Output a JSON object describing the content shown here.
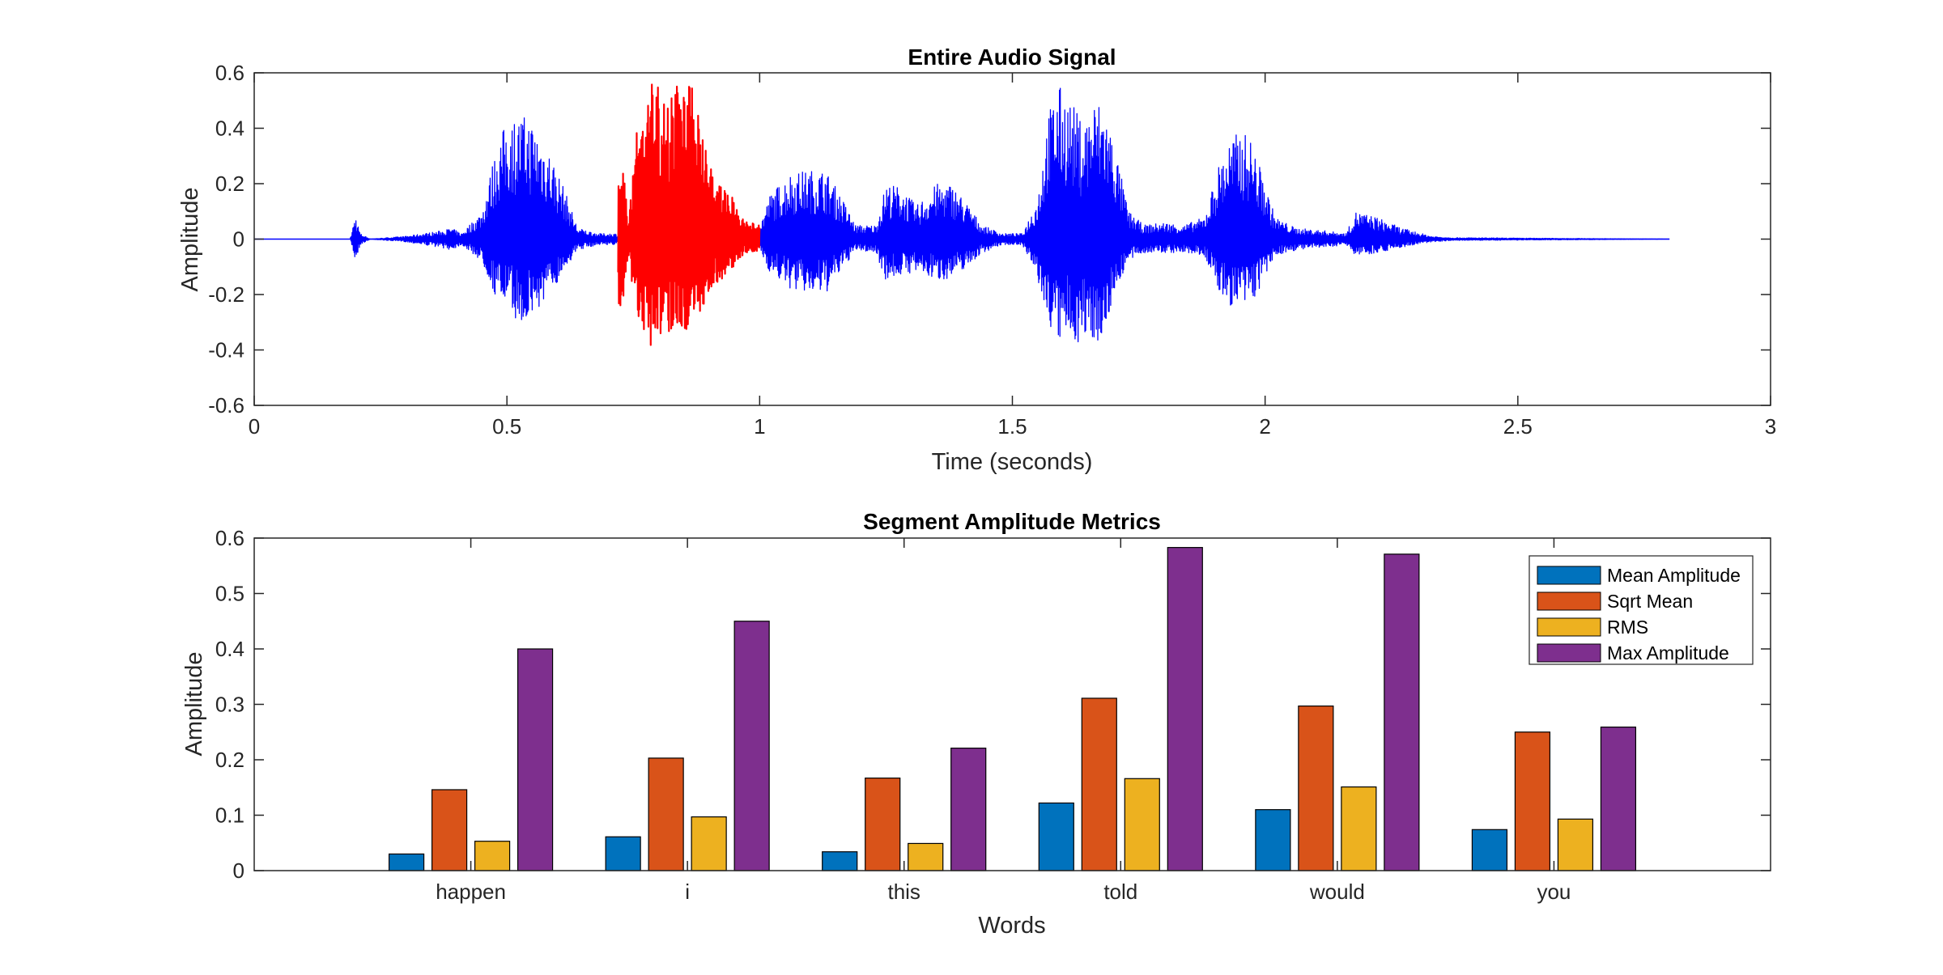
{
  "chart_data": [
    {
      "type": "line",
      "title": "Entire Audio Signal",
      "xlabel": "Time (seconds)",
      "ylabel": "Amplitude",
      "xlim": [
        0,
        3
      ],
      "ylim": [
        -0.6,
        0.6
      ],
      "xticks": [
        0,
        0.5,
        1,
        1.5,
        2,
        2.5,
        3
      ],
      "yticks": [
        -0.6,
        -0.4,
        -0.2,
        0,
        0.2,
        0.4,
        0.6
      ],
      "xticklabels": [
        "0",
        "0.5",
        "1",
        "1.5",
        "2",
        "2.5",
        "3"
      ],
      "yticklabels": [
        "-0.6",
        "-0.4",
        "-0.2",
        "0",
        "0.2",
        "0.4",
        "0.6"
      ],
      "grid": false,
      "series": [
        {
          "color": "#0000ff",
          "duration": 2.8,
          "envelope": [
            [
              0.19,
              0.0,
              0.0
            ],
            [
              0.2,
              0.09,
              -0.08
            ],
            [
              0.21,
              0.02,
              -0.02
            ],
            [
              0.23,
              0.0,
              0.0
            ],
            [
              0.3,
              0.01,
              -0.01
            ],
            [
              0.37,
              0.03,
              -0.03
            ],
            [
              0.39,
              0.04,
              -0.04
            ],
            [
              0.41,
              0.02,
              -0.02
            ],
            [
              0.45,
              0.1,
              -0.08
            ],
            [
              0.48,
              0.34,
              -0.22
            ],
            [
              0.5,
              0.43,
              -0.24
            ],
            [
              0.53,
              0.45,
              -0.32
            ],
            [
              0.55,
              0.43,
              -0.28
            ],
            [
              0.58,
              0.34,
              -0.22
            ],
            [
              0.61,
              0.2,
              -0.12
            ],
            [
              0.64,
              0.04,
              -0.04
            ],
            [
              0.68,
              0.02,
              -0.02
            ],
            [
              0.72,
              0.02,
              -0.02
            ],
            [
              1.0,
              0.05,
              -0.04
            ],
            [
              1.02,
              0.16,
              -0.12
            ],
            [
              1.06,
              0.24,
              -0.18
            ],
            [
              1.1,
              0.25,
              -0.2
            ],
            [
              1.13,
              0.25,
              -0.2
            ],
            [
              1.16,
              0.16,
              -0.12
            ],
            [
              1.19,
              0.05,
              -0.04
            ],
            [
              1.23,
              0.05,
              -0.05
            ],
            [
              1.25,
              0.2,
              -0.15
            ],
            [
              1.28,
              0.19,
              -0.13
            ],
            [
              1.31,
              0.12,
              -0.12
            ],
            [
              1.35,
              0.2,
              -0.15
            ],
            [
              1.38,
              0.2,
              -0.14
            ],
            [
              1.41,
              0.13,
              -0.1
            ],
            [
              1.44,
              0.05,
              -0.05
            ],
            [
              1.48,
              0.02,
              -0.02
            ],
            [
              1.52,
              0.02,
              -0.02
            ],
            [
              1.55,
              0.15,
              -0.15
            ],
            [
              1.57,
              0.45,
              -0.3
            ],
            [
              1.59,
              0.56,
              -0.38
            ],
            [
              1.61,
              0.52,
              -0.36
            ],
            [
              1.64,
              0.42,
              -0.38
            ],
            [
              1.66,
              0.5,
              -0.36
            ],
            [
              1.68,
              0.5,
              -0.38
            ],
            [
              1.7,
              0.36,
              -0.2
            ],
            [
              1.73,
              0.1,
              -0.08
            ],
            [
              1.76,
              0.05,
              -0.05
            ],
            [
              1.8,
              0.06,
              -0.05
            ],
            [
              1.84,
              0.05,
              -0.05
            ],
            [
              1.88,
              0.08,
              -0.06
            ],
            [
              1.91,
              0.28,
              -0.2
            ],
            [
              1.93,
              0.36,
              -0.24
            ],
            [
              1.95,
              0.39,
              -0.26
            ],
            [
              1.97,
              0.37,
              -0.24
            ],
            [
              1.99,
              0.26,
              -0.18
            ],
            [
              2.02,
              0.08,
              -0.06
            ],
            [
              2.06,
              0.04,
              -0.04
            ],
            [
              2.12,
              0.03,
              -0.03
            ],
            [
              2.16,
              0.02,
              -0.02
            ],
            [
              2.18,
              0.1,
              -0.06
            ],
            [
              2.22,
              0.08,
              -0.05
            ],
            [
              2.27,
              0.04,
              -0.03
            ],
            [
              2.33,
              0.01,
              -0.01
            ],
            [
              2.37,
              0.005,
              -0.005
            ],
            [
              2.8,
              0.0,
              0.0
            ]
          ]
        },
        {
          "color": "#ff0000",
          "highlight_range": [
            0.72,
            1.0
          ],
          "envelope": [
            [
              0.72,
              0.25,
              -0.25
            ],
            [
              0.73,
              0.28,
              -0.25
            ],
            [
              0.74,
              0.06,
              -0.05
            ],
            [
              0.75,
              0.34,
              -0.2
            ],
            [
              0.76,
              0.42,
              -0.3
            ],
            [
              0.78,
              0.54,
              -0.38
            ],
            [
              0.79,
              0.58,
              -0.42
            ],
            [
              0.8,
              0.57,
              -0.36
            ],
            [
              0.82,
              0.55,
              -0.34
            ],
            [
              0.84,
              0.56,
              -0.32
            ],
            [
              0.86,
              0.55,
              -0.33
            ],
            [
              0.88,
              0.55,
              -0.3
            ],
            [
              0.89,
              0.36,
              -0.24
            ],
            [
              0.91,
              0.22,
              -0.17
            ],
            [
              0.94,
              0.18,
              -0.12
            ],
            [
              0.96,
              0.08,
              -0.07
            ],
            [
              0.98,
              0.06,
              -0.05
            ],
            [
              1.0,
              0.05,
              -0.04
            ]
          ]
        }
      ]
    },
    {
      "type": "bar",
      "title": "Segment Amplitude Metrics",
      "xlabel": "Words",
      "ylabel": "Amplitude",
      "ylim": [
        0,
        0.6
      ],
      "yticks": [
        0,
        0.1,
        0.2,
        0.3,
        0.4,
        0.5,
        0.6
      ],
      "yticklabels": [
        "0",
        "0.1",
        "0.2",
        "0.3",
        "0.4",
        "0.5",
        "0.6"
      ],
      "categories": [
        "happen",
        "i",
        "this",
        "told",
        "would",
        "you"
      ],
      "legend_position": "top-right",
      "grid": false,
      "series": [
        {
          "name": "Mean Amplitude",
          "color": "#0072bd",
          "values": [
            0.03,
            0.061,
            0.034,
            0.122,
            0.11,
            0.074
          ]
        },
        {
          "name": "Sqrt Mean",
          "color": "#d95319",
          "values": [
            0.146,
            0.203,
            0.167,
            0.311,
            0.297,
            0.25
          ]
        },
        {
          "name": "RMS",
          "color": "#edb120",
          "values": [
            0.053,
            0.097,
            0.049,
            0.166,
            0.151,
            0.093
          ]
        },
        {
          "name": "Max Amplitude",
          "color": "#7e2f8e",
          "values": [
            0.4,
            0.45,
            0.221,
            0.583,
            0.571,
            0.259
          ]
        }
      ]
    }
  ]
}
